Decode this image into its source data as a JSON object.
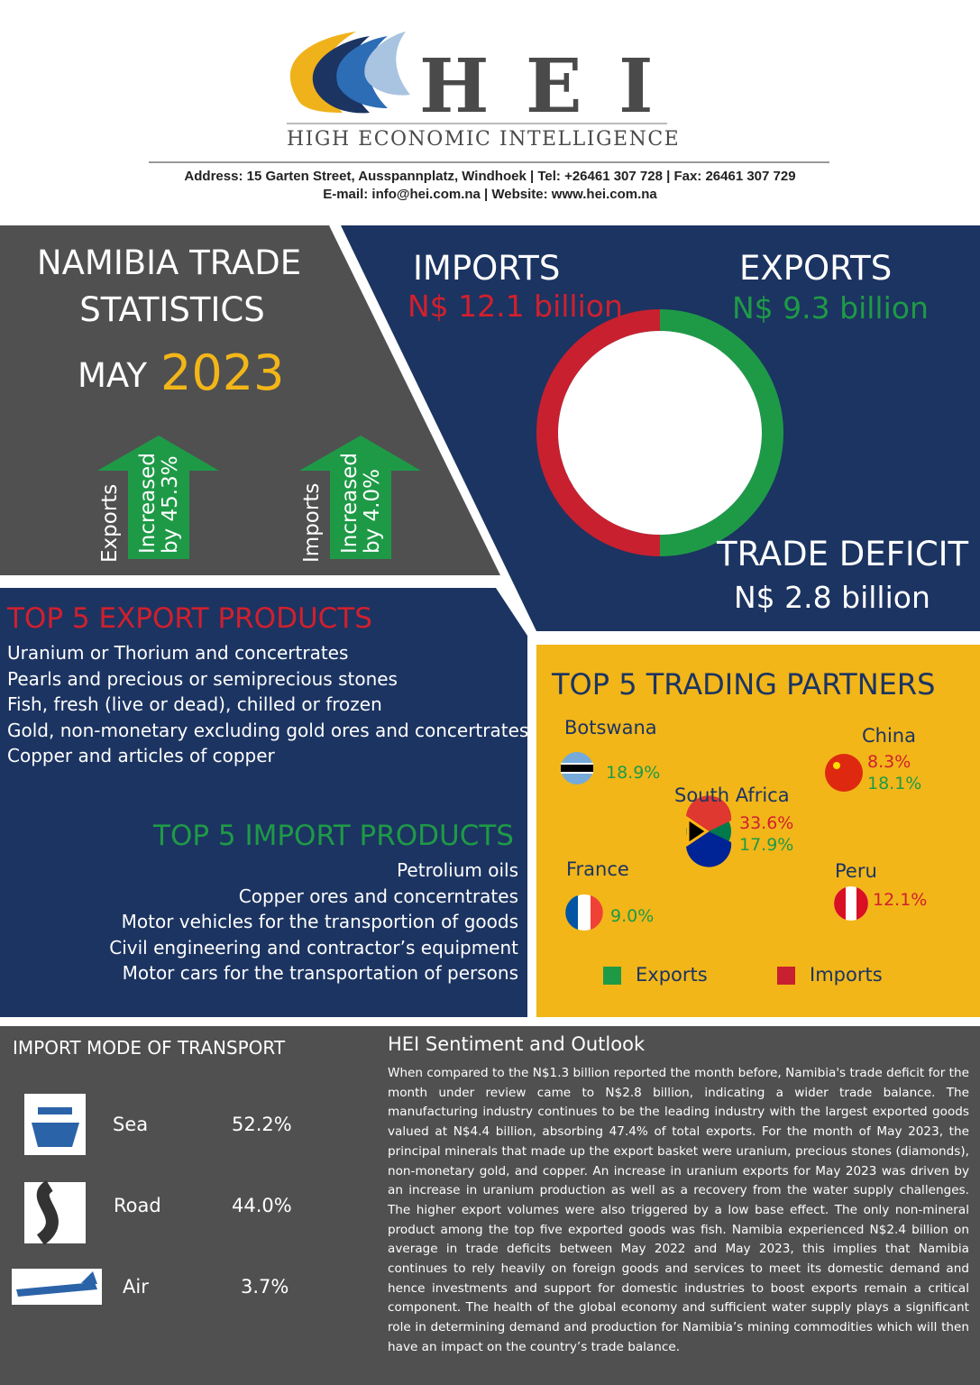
{
  "header": {
    "logo": "H E I",
    "subtitle": "HIGH ECONOMIC INTELLIGENCE",
    "address_line1": "Address: 15 Garten Street, Ausspannplatz, Windhoek | Tel: +26461 307 728 | Fax: 26461 307 729",
    "address_line2": "E-mail: info@hei.com.na | Website: www.hei.com.na"
  },
  "title_panel": {
    "title_line1": "NAMIBIA TRADE",
    "title_line2": "STATISTICS",
    "month": "MAY",
    "year": "2023",
    "arrows": [
      {
        "label": "Exports",
        "line1": "Increased",
        "line2": "by 45.3%"
      },
      {
        "label": "Imports",
        "line1": "Increased",
        "line2": "by 4.0%"
      }
    ]
  },
  "summary": {
    "imports_label": "IMPORTS",
    "imports_value": "N$ 12.1 billion",
    "exports_label": "EXPORTS",
    "exports_value": "N$ 9.3 billion",
    "deficit_label": "TRADE DEFICIT",
    "deficit_value": "N$ 2.8 billion"
  },
  "export_products": {
    "title": "TOP 5 EXPORT PRODUCTS",
    "items": [
      "Uranium or Thorium and concertrates",
      "Pearls and precious or semiprecious stones",
      "Fish, fresh (live or dead), chilled or frozen",
      "Gold, non-monetary excluding gold ores and concertrates",
      "Copper and articles of copper"
    ]
  },
  "import_products": {
    "title": "TOP 5 IMPORT PRODUCTS",
    "items": [
      "Petrolium oils",
      "Copper ores and concerntrates",
      "Motor vehicles for the transportion of goods",
      "Civil engineering and contractor’s equipment",
      "Motor cars for the transportation of persons"
    ]
  },
  "partners": {
    "title": "TOP 5 TRADING PARTNERS",
    "list": [
      {
        "name": "Botswana",
        "exports": "18.9%"
      },
      {
        "name": "China",
        "imports": "8.3%",
        "exports": "18.1%"
      },
      {
        "name": "South Africa",
        "imports": "33.6%",
        "exports": "17.9%"
      },
      {
        "name": "France",
        "exports": "9.0%"
      },
      {
        "name": "Peru",
        "imports": "12.1%"
      }
    ],
    "legend_exports": "Exports",
    "legend_imports": "Imports"
  },
  "transport": {
    "title": "IMPORT MODE OF TRANSPORT",
    "modes": [
      {
        "name": "Sea",
        "share": "52.2%"
      },
      {
        "name": "Road",
        "share": "44.0%"
      },
      {
        "name": "Air",
        "share": "3.7%"
      }
    ]
  },
  "outlook": {
    "title": "HEI Sentiment and Outlook",
    "text": "When compared to the N$1.3 billion reported the month before, Namibia's trade deficit for the month under review came to N$2.8 billion, indicating a wider trade balance. The manufacturing industry continues to be the leading industry with the largest exported goods valued at N$4.4 billion, absorbing 47.4% of total exports. For the month of May 2023, the principal minerals that made up the export basket were uranium, precious stones (diamonds), non-monetary gold, and copper. An increase in uranium exports for May 2023 was driven by an increase in uranium production as well as a recovery from the water supply challenges. The higher export volumes were also triggered by a low base effect. The only non-mineral product among the top five exported goods was fish. Namibia experienced N$2.4 billion on average in trade deficits between May 2022 and May 2023, this implies that Namibia continues to rely heavily on foreign goods and services to meet its domestic demand and hence investments and support for domestic industries to boost exports remain a critical component. The health of the global economy and sufficient water supply plays a significant role in determining demand and production for Namibia’s mining commodities which will then have an impact on the country’s trade balance."
  }
}
